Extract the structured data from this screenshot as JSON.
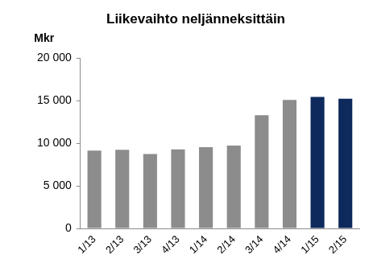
{
  "chart_data": {
    "type": "bar",
    "title": "Liikevaihto neljänneksittäin",
    "y_label": "Mkr",
    "categories": [
      "1/13",
      "2/13",
      "3/13",
      "4/13",
      "1/14",
      "2/14",
      "3/14",
      "4/14",
      "1/15",
      "2/15"
    ],
    "values": [
      9150,
      9250,
      8750,
      9300,
      9550,
      9750,
      13300,
      15100,
      15450,
      15250
    ],
    "colors": [
      "#8c8c8c",
      "#8c8c8c",
      "#8c8c8c",
      "#8c8c8c",
      "#8c8c8c",
      "#8c8c8c",
      "#8c8c8c",
      "#8c8c8c",
      "#0e2a5c",
      "#0e2a5c"
    ],
    "ylim": [
      0,
      20000
    ],
    "yticks": [
      0,
      {
        "value": 5000,
        "label": "5 000"
      },
      {
        "value": 10000,
        "label": "10 000"
      },
      {
        "value": 15000,
        "label": "15 000"
      },
      {
        "value": 20000,
        "label": "20 000"
      }
    ],
    "grid": false
  }
}
